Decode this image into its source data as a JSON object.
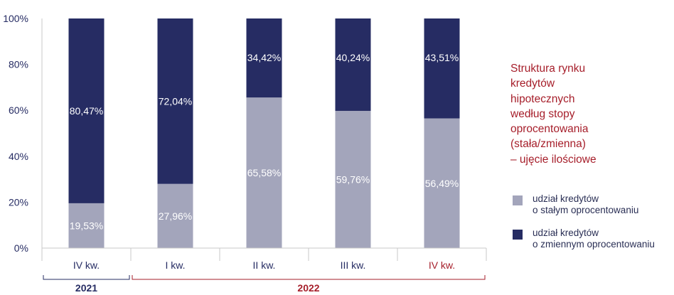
{
  "colors": {
    "fixed": "#a3a5bb",
    "variable": "#262c63",
    "axis_text": "#262c63",
    "accent": "#a61e2a",
    "grid": "#c9c9c9"
  },
  "title_lines": [
    "Struktura rynku",
    "kredytów",
    "hipotecznych",
    "według stopy",
    "oprocentowania",
    "(stała/zmienna)",
    "– ujęcie ilościowe"
  ],
  "legend": [
    {
      "lines": [
        "udział kredytów",
        "o stałym oprocentowaniu"
      ],
      "color_key": "fixed"
    },
    {
      "lines": [
        "udział kredytów",
        "o zmiennym oprocentowaniu"
      ],
      "color_key": "variable"
    }
  ],
  "chart_data": {
    "type": "bar",
    "stacked": true,
    "categories": [
      "IV kw.",
      "I kw.",
      "II kw.",
      "III kw.",
      "IV kw."
    ],
    "category_colors": [
      "axis_text",
      "axis_text",
      "axis_text",
      "axis_text",
      "accent"
    ],
    "groups": [
      {
        "label": "2021",
        "from": 0,
        "to": 0,
        "color_key": "axis_text"
      },
      {
        "label": "2022",
        "from": 1,
        "to": 4,
        "color_key": "accent"
      }
    ],
    "series": [
      {
        "name": "udział kredytów o stałym oprocentowaniu",
        "color_key": "fixed",
        "values": [
          19.53,
          27.96,
          65.58,
          59.76,
          56.49
        ],
        "labels": [
          "19,53%",
          "27,96%",
          "65,58%",
          "59,76%",
          "56,49%"
        ]
      },
      {
        "name": "udział kredytów o zmiennym oprocentowaniu",
        "color_key": "variable",
        "values": [
          80.47,
          72.04,
          34.42,
          40.24,
          43.51
        ],
        "labels": [
          "80,47%",
          "72,04%",
          "34,42%",
          "40,24%",
          "43,51%"
        ]
      }
    ],
    "ylim": [
      0,
      100
    ],
    "yticks": [
      0,
      20,
      40,
      60,
      80,
      100
    ],
    "ytick_labels": [
      "0%",
      "20%",
      "40%",
      "60%",
      "80%",
      "100%"
    ],
    "grid": true,
    "legend_position": "right"
  }
}
